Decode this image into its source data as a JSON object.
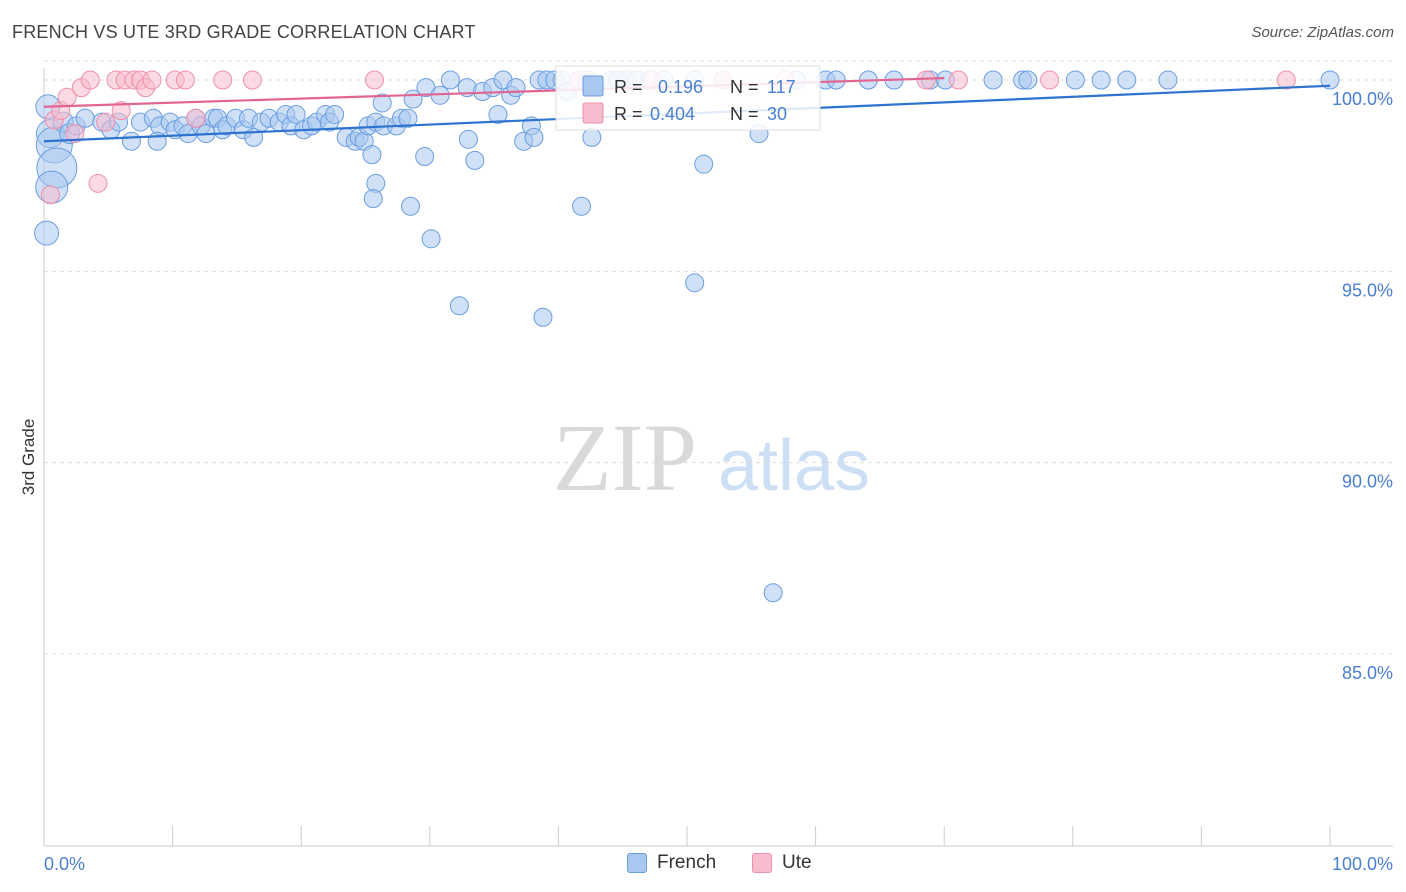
{
  "title": "FRENCH VS UTE 3RD GRADE CORRELATION CHART",
  "source": "Source: ZipAtlas.com",
  "watermark": {
    "zip": "ZIP",
    "atlas": "atlas"
  },
  "colors": {
    "french_fill": "#a9c8f0",
    "french_stroke": "#6a9de0",
    "french_line": "#2f73d0",
    "ute_fill": "#f7bccd",
    "ute_stroke": "#ee8fab",
    "ute_line": "#e26591",
    "tick_text": "#4a7fd0",
    "grid": "#dddddd"
  },
  "legend": {
    "french": {
      "r_label": "R =",
      "r_value": "0.196",
      "n_label": "N =",
      "n_value": "117"
    },
    "ute": {
      "r_label": "R =",
      "r_value": "0.404",
      "n_label": "N =",
      "n_value": "30"
    }
  },
  "bottom_legend": [
    "French",
    "Ute"
  ],
  "chart_data": {
    "type": "scatter",
    "title": "FRENCH VS UTE 3RD GRADE CORRELATION CHART",
    "xlabel": "",
    "ylabel": "3rd Grade",
    "xlim": [
      0,
      100
    ],
    "ylim": [
      80,
      100.8
    ],
    "x_tick_labels": [
      "0.0%",
      "100.0%"
    ],
    "y_ticks": [
      85,
      90,
      95,
      100
    ],
    "y_tick_labels": [
      "85.0%",
      "90.0%",
      "95.0%",
      "100.0%"
    ],
    "grid": true,
    "legend_placement": "top-center",
    "series": [
      {
        "name": "French",
        "trend": {
          "x": [
            0,
            100
          ],
          "y": [
            98.4,
            99.85
          ]
        },
        "points": [
          [
            0.3,
            99.3,
            12
          ],
          [
            0.5,
            98.6,
            14
          ],
          [
            0.8,
            98.3,
            18
          ],
          [
            1.0,
            97.7,
            20
          ],
          [
            0.6,
            97.2,
            16
          ],
          [
            0.2,
            96.0,
            12
          ],
          [
            1.5,
            98.9,
            10
          ],
          [
            2.0,
            98.6,
            10
          ],
          [
            2.5,
            98.8,
            9
          ],
          [
            3.2,
            99.0,
            9
          ],
          [
            4.5,
            98.9,
            9
          ],
          [
            5.2,
            98.7,
            9
          ],
          [
            5.8,
            98.9,
            9
          ],
          [
            6.8,
            98.4,
            9
          ],
          [
            7.5,
            98.9,
            9
          ],
          [
            8.5,
            99.0,
            9
          ],
          [
            9.0,
            98.8,
            9
          ],
          [
            9.8,
            98.9,
            9
          ],
          [
            8.8,
            98.4,
            9
          ],
          [
            10.2,
            98.7,
            9
          ],
          [
            10.8,
            98.8,
            9
          ],
          [
            11.2,
            98.6,
            9
          ],
          [
            11.8,
            99.0,
            9
          ],
          [
            12.2,
            98.8,
            9
          ],
          [
            12.6,
            98.6,
            9
          ],
          [
            13.2,
            99.0,
            9
          ],
          [
            13.5,
            99.0,
            9
          ],
          [
            13.9,
            98.7,
            9
          ],
          [
            14.2,
            98.8,
            9
          ],
          [
            14.9,
            99.0,
            9
          ],
          [
            15.5,
            98.7,
            9
          ],
          [
            15.9,
            99.0,
            9
          ],
          [
            16.3,
            98.5,
            9
          ],
          [
            16.9,
            98.9,
            9
          ],
          [
            17.5,
            99.0,
            9
          ],
          [
            18.3,
            98.9,
            9
          ],
          [
            18.8,
            99.1,
            9
          ],
          [
            19.2,
            98.8,
            9
          ],
          [
            19.6,
            99.1,
            9
          ],
          [
            20.2,
            98.7,
            9
          ],
          [
            20.8,
            98.8,
            9
          ],
          [
            21.2,
            98.9,
            9
          ],
          [
            21.9,
            99.1,
            9
          ],
          [
            22.2,
            98.9,
            9
          ],
          [
            22.6,
            99.1,
            9
          ],
          [
            23.5,
            98.5,
            9
          ],
          [
            24.2,
            98.4,
            9
          ],
          [
            24.5,
            98.5,
            9
          ],
          [
            24.9,
            98.4,
            9
          ],
          [
            25.2,
            98.8,
            9
          ],
          [
            25.8,
            98.9,
            9
          ],
          [
            26.4,
            98.8,
            9
          ],
          [
            26.3,
            99.4,
            9
          ],
          [
            27.4,
            98.8,
            9
          ],
          [
            27.8,
            99.0,
            9
          ],
          [
            28.3,
            99.0,
            9
          ],
          [
            28.7,
            99.5,
            9
          ],
          [
            29.7,
            99.8,
            9
          ],
          [
            30.8,
            99.6,
            9
          ],
          [
            31.6,
            100.0,
            9
          ],
          [
            32.9,
            99.8,
            9
          ],
          [
            34.1,
            99.7,
            9
          ],
          [
            34.9,
            99.8,
            9
          ],
          [
            35.3,
            99.1,
            9
          ],
          [
            35.7,
            100.0,
            9
          ],
          [
            36.3,
            99.6,
            9
          ],
          [
            36.7,
            99.8,
            9
          ],
          [
            37.3,
            98.4,
            9
          ],
          [
            37.9,
            98.8,
            9
          ],
          [
            38.5,
            100.0,
            9
          ],
          [
            39.1,
            100.0,
            9
          ],
          [
            39.7,
            100.0,
            9
          ],
          [
            40.3,
            100.0,
            9
          ],
          [
            40.7,
            99.7,
            9
          ],
          [
            41.6,
            100.0,
            9
          ],
          [
            42.3,
            100.0,
            9
          ],
          [
            42.6,
            98.5,
            9
          ],
          [
            44.1,
            100.0,
            9
          ],
          [
            44.6,
            100.0,
            9
          ],
          [
            45.3,
            100.0,
            9
          ],
          [
            46.1,
            100.0,
            9
          ],
          [
            47.1,
            100.0,
            9
          ],
          [
            48.2,
            100.0,
            9
          ],
          [
            50.6,
            100.0,
            9
          ],
          [
            52.8,
            100.0,
            9
          ],
          [
            55.6,
            98.6,
            9
          ],
          [
            58.5,
            100.0,
            9
          ],
          [
            60.8,
            100.0,
            9
          ],
          [
            61.6,
            100.0,
            9
          ],
          [
            64.1,
            100.0,
            9
          ],
          [
            66.1,
            100.0,
            9
          ],
          [
            68.9,
            100.0,
            9
          ],
          [
            70.1,
            100.0,
            9
          ],
          [
            73.8,
            100.0,
            9
          ],
          [
            76.1,
            100.0,
            9
          ],
          [
            76.5,
            100.0,
            9
          ],
          [
            80.2,
            100.0,
            9
          ],
          [
            82.2,
            100.0,
            9
          ],
          [
            84.2,
            100.0,
            9
          ],
          [
            87.4,
            100.0,
            9
          ],
          [
            100.0,
            100.0,
            9
          ],
          [
            25.5,
            98.05,
            9
          ],
          [
            28.5,
            96.7,
            9
          ],
          [
            25.8,
            97.3,
            9
          ],
          [
            25.6,
            96.9,
            9
          ],
          [
            29.6,
            98.0,
            9
          ],
          [
            33.0,
            98.45,
            9
          ],
          [
            33.5,
            97.9,
            9
          ],
          [
            38.1,
            98.5,
            9
          ],
          [
            30.1,
            95.85,
            9
          ],
          [
            32.3,
            94.1,
            9
          ],
          [
            38.8,
            93.8,
            9
          ],
          [
            41.8,
            96.7,
            9
          ],
          [
            51.3,
            97.8,
            9
          ],
          [
            50.6,
            94.7,
            9
          ],
          [
            56.7,
            86.6,
            9
          ]
        ]
      },
      {
        "name": "Ute",
        "trend": {
          "x": [
            0,
            70
          ],
          "y": [
            99.3,
            100.05
          ]
        },
        "points": [
          [
            0.5,
            97.0,
            9
          ],
          [
            0.8,
            98.95,
            9
          ],
          [
            1.3,
            99.2,
            9
          ],
          [
            1.8,
            99.55,
            9
          ],
          [
            2.4,
            98.6,
            9
          ],
          [
            2.9,
            99.8,
            9
          ],
          [
            3.6,
            100.0,
            9
          ],
          [
            4.2,
            97.3,
            9
          ],
          [
            4.8,
            98.9,
            9
          ],
          [
            5.6,
            100.0,
            9
          ],
          [
            6.0,
            99.2,
            9
          ],
          [
            6.3,
            100.0,
            9
          ],
          [
            7.0,
            100.0,
            9
          ],
          [
            7.5,
            100.0,
            9
          ],
          [
            7.9,
            99.8,
            9
          ],
          [
            8.4,
            100.0,
            9
          ],
          [
            10.2,
            100.0,
            9
          ],
          [
            11.0,
            100.0,
            9
          ],
          [
            11.8,
            99.0,
            9
          ],
          [
            13.9,
            100.0,
            9
          ],
          [
            16.2,
            100.0,
            9
          ],
          [
            25.7,
            100.0,
            9
          ],
          [
            41.6,
            100.0,
            9
          ],
          [
            47.3,
            100.0,
            9
          ],
          [
            52.8,
            100.0,
            9
          ],
          [
            57.6,
            100.0,
            9
          ],
          [
            68.6,
            100.0,
            9
          ],
          [
            71.1,
            100.0,
            9
          ],
          [
            78.2,
            100.0,
            9
          ],
          [
            96.6,
            100.0,
            9
          ]
        ]
      }
    ]
  }
}
